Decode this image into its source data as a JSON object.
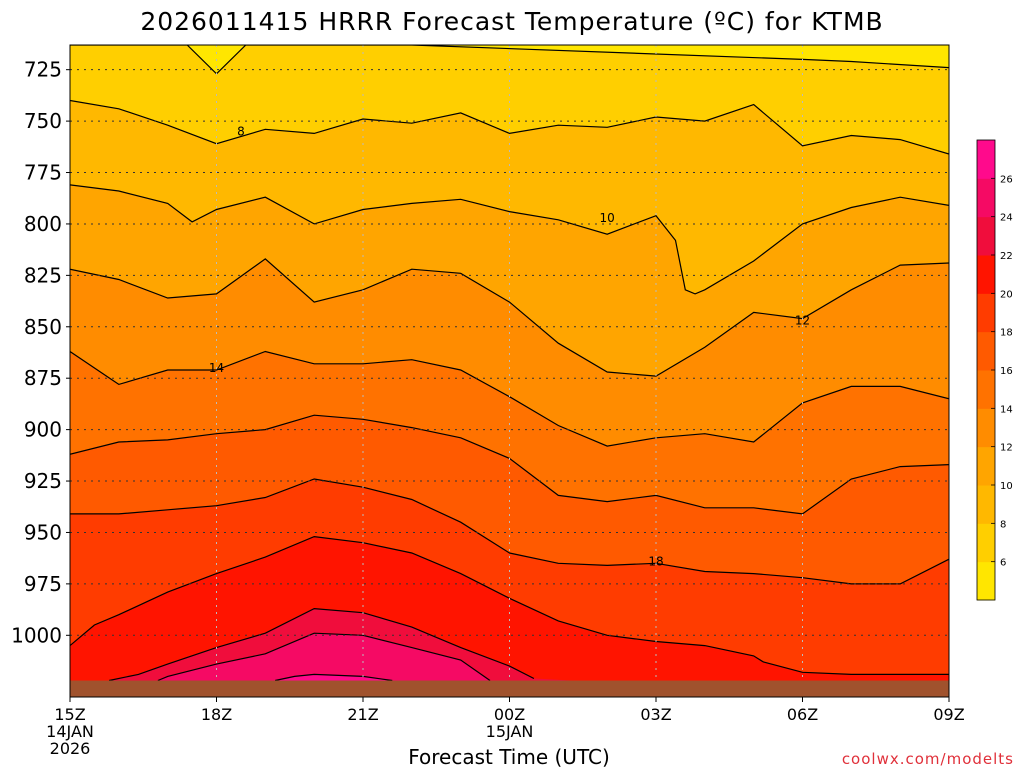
{
  "chart_data": {
    "type": "heatmap",
    "title": "2026011415 HRRR Forecast Temperature (ºC) for KTMB",
    "xlabel": "Forecast Time (UTC)",
    "credit": "coolwx.com/modelts",
    "x_hours": [
      0,
      18
    ],
    "x_ticks": [
      {
        "hour": 0,
        "label": "15Z",
        "date": "14JAN",
        "year": "2026"
      },
      {
        "hour": 3,
        "label": "18Z",
        "date": "",
        "year": ""
      },
      {
        "hour": 6,
        "label": "21Z",
        "date": "",
        "year": ""
      },
      {
        "hour": 9,
        "label": "00Z",
        "date": "15JAN",
        "year": ""
      },
      {
        "hour": 12,
        "label": "03Z",
        "date": "",
        "year": ""
      },
      {
        "hour": 15,
        "label": "06Z",
        "date": "",
        "year": ""
      },
      {
        "hour": 18,
        "label": "09Z",
        "date": "",
        "year": ""
      }
    ],
    "ylim_hPa": [
      1030,
      713
    ],
    "y_ticks": [
      725,
      750,
      775,
      800,
      825,
      850,
      875,
      900,
      925,
      950,
      975,
      1000
    ],
    "grid": true,
    "ground_pressure_hPa": 1022,
    "ground_color": "#a0522d",
    "colorbar": {
      "bounds": [
        4,
        6,
        8,
        10,
        12,
        14,
        16,
        18,
        20,
        22,
        24,
        26,
        28
      ],
      "colors": [
        "#ffe600",
        "#ffcf00",
        "#ffb800",
        "#ffa500",
        "#ff8c00",
        "#ff7200",
        "#ff5a00",
        "#ff3c00",
        "#ff1400",
        "#f00d3c",
        "#f50a64",
        "#ff0a8c"
      ],
      "tick_labels": [
        "6",
        "8",
        "10",
        "12",
        "14",
        "16",
        "18",
        "20",
        "22",
        "24",
        "26"
      ]
    },
    "contour_labels": [
      {
        "text": "8",
        "hour": 3.5,
        "hPa": 755
      },
      {
        "text": "10",
        "hour": 11.0,
        "hPa": 797
      },
      {
        "text": "14",
        "hour": 3.0,
        "hPa": 870
      },
      {
        "text": "12",
        "hour": 15.0,
        "hPa": 847
      },
      {
        "text": "18",
        "hour": 12.0,
        "hPa": 964
      }
    ],
    "isotherms": [
      {
        "temp": 6,
        "points": [
          [
            0,
            713
          ],
          [
            2.4,
            713
          ],
          [
            3,
            727
          ],
          [
            3.6,
            713
          ],
          [
            7,
            713
          ],
          [
            15,
            720
          ],
          [
            16,
            721
          ],
          [
            18,
            724
          ]
        ]
      },
      {
        "temp": 8,
        "points": [
          [
            0,
            740
          ],
          [
            1,
            744
          ],
          [
            2,
            752
          ],
          [
            3,
            761
          ],
          [
            4,
            754
          ],
          [
            5,
            756
          ],
          [
            6,
            749
          ],
          [
            7,
            751
          ],
          [
            8,
            746
          ],
          [
            9,
            756
          ],
          [
            10,
            752
          ],
          [
            11,
            753
          ],
          [
            12,
            748
          ],
          [
            13,
            750
          ],
          [
            14,
            742
          ],
          [
            15,
            762
          ],
          [
            16,
            757
          ],
          [
            17,
            759
          ],
          [
            18,
            766
          ]
        ]
      },
      {
        "temp": 10,
        "points": [
          [
            0,
            781
          ],
          [
            1,
            784
          ],
          [
            2,
            790
          ],
          [
            2.5,
            799
          ],
          [
            3,
            793
          ],
          [
            4,
            787
          ],
          [
            5,
            800
          ],
          [
            6,
            793
          ],
          [
            7,
            790
          ],
          [
            8,
            788
          ],
          [
            9,
            794
          ],
          [
            10,
            798
          ],
          [
            11,
            805
          ],
          [
            12,
            796
          ],
          [
            12.4,
            808
          ],
          [
            12.6,
            832
          ],
          [
            12.8,
            834
          ],
          [
            13,
            832
          ],
          [
            14,
            818
          ],
          [
            15,
            800
          ],
          [
            16,
            792
          ],
          [
            17,
            787
          ],
          [
            18,
            791
          ]
        ]
      },
      {
        "temp": 12,
        "points": [
          [
            0,
            822
          ],
          [
            1,
            827
          ],
          [
            2,
            836
          ],
          [
            3,
            834
          ],
          [
            4,
            817
          ],
          [
            5,
            838
          ],
          [
            6,
            832
          ],
          [
            7,
            822
          ],
          [
            8,
            824
          ],
          [
            9,
            838
          ],
          [
            10,
            858
          ],
          [
            11,
            872
          ],
          [
            12,
            874
          ],
          [
            13,
            860
          ],
          [
            14,
            843
          ],
          [
            15,
            846
          ],
          [
            16,
            832
          ],
          [
            17,
            820
          ],
          [
            18,
            819
          ]
        ]
      },
      {
        "temp": 14,
        "points": [
          [
            0,
            862
          ],
          [
            1,
            878
          ],
          [
            2,
            871
          ],
          [
            3,
            871
          ],
          [
            4,
            862
          ],
          [
            5,
            868
          ],
          [
            6,
            868
          ],
          [
            7,
            866
          ],
          [
            8,
            871
          ],
          [
            9,
            884
          ],
          [
            10,
            898
          ],
          [
            11,
            908
          ],
          [
            12,
            904
          ],
          [
            13,
            902
          ],
          [
            14,
            906
          ],
          [
            15,
            887
          ],
          [
            16,
            879
          ],
          [
            17,
            879
          ],
          [
            18,
            885
          ]
        ]
      },
      {
        "temp": 16,
        "points": [
          [
            0,
            912
          ],
          [
            1,
            906
          ],
          [
            2,
            905
          ],
          [
            3,
            902
          ],
          [
            4,
            900
          ],
          [
            5,
            893
          ],
          [
            6,
            895
          ],
          [
            7,
            899
          ],
          [
            8,
            904
          ],
          [
            9,
            914
          ],
          [
            10,
            932
          ],
          [
            11,
            935
          ],
          [
            12,
            932
          ],
          [
            13,
            938
          ],
          [
            14,
            938
          ],
          [
            15,
            941
          ],
          [
            16,
            924
          ],
          [
            17,
            918
          ],
          [
            18,
            917
          ]
        ]
      },
      {
        "temp": 18,
        "points": [
          [
            0,
            941
          ],
          [
            1,
            941
          ],
          [
            2,
            939
          ],
          [
            3,
            937
          ],
          [
            4,
            933
          ],
          [
            5,
            924
          ],
          [
            6,
            928
          ],
          [
            7,
            934
          ],
          [
            8,
            945
          ],
          [
            9,
            960
          ],
          [
            10,
            965
          ],
          [
            11,
            966
          ],
          [
            12,
            965
          ],
          [
            13,
            969
          ],
          [
            14,
            970
          ],
          [
            15,
            972
          ],
          [
            16,
            975
          ],
          [
            17,
            975
          ],
          [
            18,
            963
          ]
        ]
      },
      {
        "temp": 20,
        "points": [
          [
            0,
            1005
          ],
          [
            0.5,
            995
          ],
          [
            1,
            990
          ],
          [
            2,
            979
          ],
          [
            3,
            970
          ],
          [
            4,
            962
          ],
          [
            5,
            952
          ],
          [
            6,
            955
          ],
          [
            7,
            960
          ],
          [
            8,
            970
          ],
          [
            9,
            982
          ],
          [
            10,
            993
          ],
          [
            11,
            1000
          ],
          [
            12,
            1003
          ],
          [
            13,
            1005
          ],
          [
            14,
            1010
          ],
          [
            14.2,
            1013
          ],
          [
            15,
            1018
          ],
          [
            16,
            1019
          ],
          [
            17,
            1019
          ],
          [
            18,
            1019
          ]
        ]
      },
      {
        "temp": 22,
        "points": [
          [
            0.8,
            1022
          ],
          [
            1.4,
            1019
          ],
          [
            2,
            1014
          ],
          [
            3,
            1006
          ],
          [
            4,
            999
          ],
          [
            5,
            987
          ],
          [
            6,
            989
          ],
          [
            7,
            996
          ],
          [
            8,
            1006
          ],
          [
            9,
            1015
          ],
          [
            9.5,
            1021
          ]
        ]
      },
      {
        "temp": 24,
        "points": [
          [
            1.8,
            1022
          ],
          [
            2,
            1020
          ],
          [
            3,
            1014
          ],
          [
            4,
            1009
          ],
          [
            5,
            999
          ],
          [
            6,
            1000
          ],
          [
            7,
            1006
          ],
          [
            8,
            1012
          ],
          [
            8.6,
            1022
          ]
        ]
      },
      {
        "temp": 26,
        "points": [
          [
            4.2,
            1022
          ],
          [
            4.6,
            1020
          ],
          [
            5,
            1019
          ],
          [
            6,
            1020
          ],
          [
            6.6,
            1022
          ]
        ]
      }
    ]
  }
}
